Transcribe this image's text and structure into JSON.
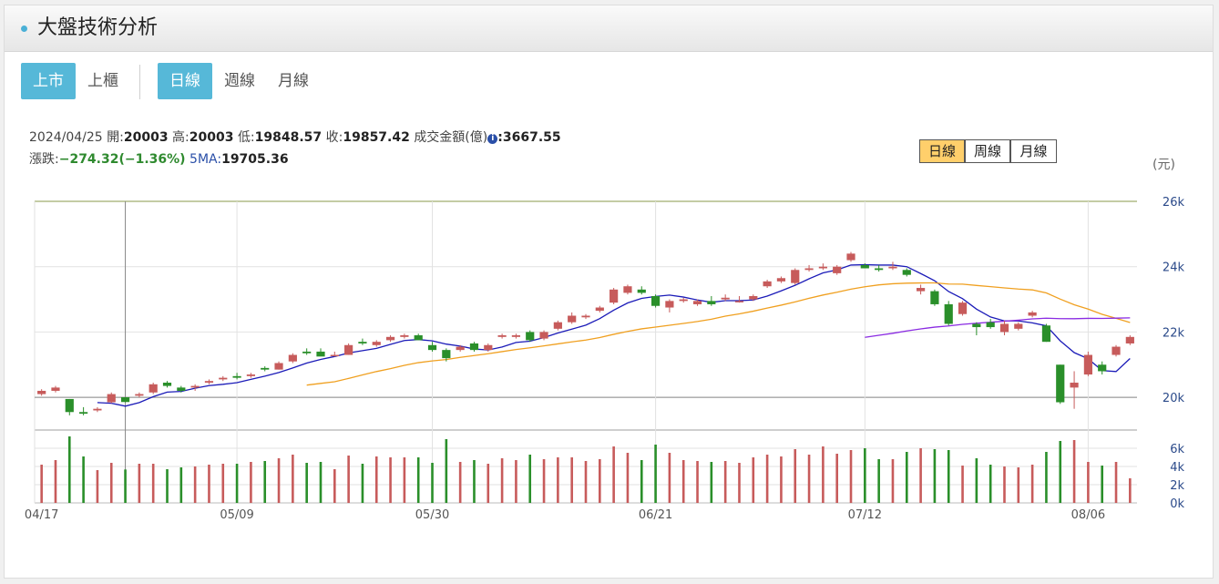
{
  "header": {
    "title": "大盤技術分析"
  },
  "market_tabs": [
    {
      "label": "上市",
      "active": true
    },
    {
      "label": "上櫃",
      "active": false
    }
  ],
  "period_tabs": [
    {
      "label": "日線",
      "active": true
    },
    {
      "label": "週線",
      "active": false
    },
    {
      "label": "月線",
      "active": false
    }
  ],
  "range_buttons": [
    {
      "label": "日線",
      "active": true
    },
    {
      "label": "周線",
      "active": false
    },
    {
      "label": "月線",
      "active": false
    }
  ],
  "info": {
    "date": "2024/04/25",
    "open_label": "開:",
    "open": "20003",
    "high_label": "高:",
    "high": "20003",
    "low_label": "低:",
    "low": "19848.57",
    "close_label": "收:",
    "close": "19857.42",
    "amount_label": "成交金額(億)",
    "amount_icon": "i",
    "amount": ":3667.55",
    "change_label": "漲跌:",
    "change": "−274.32(−1.36%)",
    "ma_label": "5MA:",
    "ma": "19705.36"
  },
  "chart_data": {
    "type": "candlestick",
    "unit": "(元)",
    "price_ylim": [
      19000,
      26000
    ],
    "price_ticks": [
      "26k",
      "24k",
      "22k",
      "20k"
    ],
    "volume_ylim": [
      0,
      8000
    ],
    "volume_ticks": [
      "6k",
      "4k",
      "2k",
      "0k"
    ],
    "x_tick_labels": [
      "04/17",
      "05/09",
      "05/30",
      "06/21",
      "07/12",
      "08/06"
    ],
    "reference_line": 20000,
    "colors": {
      "up": "#c75b5b",
      "down": "#2a8f2a",
      "ma_short": "#1b1bb8",
      "ma_mid": "#f0a020",
      "ma_long": "#8a2be2",
      "grid": "#e2e2e2"
    },
    "candles": [
      {
        "date": "04/17",
        "o": 20100,
        "h": 20250,
        "l": 20050,
        "c": 20200,
        "v": 4200
      },
      {
        "o": 20200,
        "h": 20350,
        "l": 20150,
        "c": 20300,
        "v": 4700
      },
      {
        "o": 19950,
        "h": 19950,
        "l": 19450,
        "c": 19550,
        "v": 7300
      },
      {
        "o": 19550,
        "h": 19700,
        "l": 19450,
        "c": 19500,
        "v": 5100
      },
      {
        "o": 19600,
        "h": 19700,
        "l": 19550,
        "c": 19650,
        "v": 3600
      },
      {
        "o": 19850,
        "h": 20150,
        "l": 19820,
        "c": 20100,
        "v": 4400
      },
      {
        "date": "04/25",
        "o": 20003,
        "h": 20003,
        "l": 19848.57,
        "c": 19857.42,
        "v": 3667.55
      },
      {
        "o": 20050,
        "h": 20150,
        "l": 20000,
        "c": 20100,
        "v": 4300
      },
      {
        "o": 20150,
        "h": 20450,
        "l": 20100,
        "c": 20400,
        "v": 4300
      },
      {
        "o": 20450,
        "h": 20500,
        "l": 20300,
        "c": 20350,
        "v": 3700
      },
      {
        "o": 20300,
        "h": 20350,
        "l": 20150,
        "c": 20200,
        "v": 3900
      },
      {
        "o": 20300,
        "h": 20400,
        "l": 20200,
        "c": 20350,
        "v": 4000
      },
      {
        "o": 20450,
        "h": 20550,
        "l": 20400,
        "c": 20500,
        "v": 4200
      },
      {
        "o": 20550,
        "h": 20650,
        "l": 20500,
        "c": 20600,
        "v": 4300
      },
      {
        "date": "05/09",
        "o": 20650,
        "h": 20750,
        "l": 20550,
        "c": 20600,
        "v": 4300
      },
      {
        "o": 20650,
        "h": 20750,
        "l": 20600,
        "c": 20700,
        "v": 4500
      },
      {
        "o": 20900,
        "h": 20950,
        "l": 20800,
        "c": 20850,
        "v": 4600
      },
      {
        "o": 20850,
        "h": 21100,
        "l": 20850,
        "c": 21050,
        "v": 4900
      },
      {
        "o": 21100,
        "h": 21350,
        "l": 21050,
        "c": 21300,
        "v": 5300
      },
      {
        "o": 21400,
        "h": 21500,
        "l": 21300,
        "c": 21350,
        "v": 4400
      },
      {
        "o": 21400,
        "h": 21500,
        "l": 21300,
        "c": 21250,
        "v": 4500
      },
      {
        "o": 21300,
        "h": 21400,
        "l": 21250,
        "c": 21300,
        "v": 3700
      },
      {
        "o": 21300,
        "h": 21650,
        "l": 21300,
        "c": 21600,
        "v": 5200
      },
      {
        "o": 21700,
        "h": 21800,
        "l": 21600,
        "c": 21650,
        "v": 4300
      },
      {
        "o": 21600,
        "h": 21750,
        "l": 21550,
        "c": 21700,
        "v": 5100
      },
      {
        "o": 21750,
        "h": 21900,
        "l": 21700,
        "c": 21850,
        "v": 5000
      },
      {
        "o": 21850,
        "h": 21950,
        "l": 21800,
        "c": 21900,
        "v": 5000
      },
      {
        "o": 21900,
        "h": 21950,
        "l": 21750,
        "c": 21750,
        "v": 5000
      },
      {
        "date": "05/30",
        "o": 21600,
        "h": 21700,
        "l": 21400,
        "c": 21450,
        "v": 4400
      },
      {
        "o": 21450,
        "h": 21500,
        "l": 21100,
        "c": 21200,
        "v": 7000
      },
      {
        "o": 21450,
        "h": 21600,
        "l": 21400,
        "c": 21550,
        "v": 4500
      },
      {
        "o": 21650,
        "h": 21700,
        "l": 21400,
        "c": 21450,
        "v": 4700
      },
      {
        "o": 21450,
        "h": 21650,
        "l": 21400,
        "c": 21600,
        "v": 4300
      },
      {
        "o": 21850,
        "h": 21950,
        "l": 21800,
        "c": 21900,
        "v": 4900
      },
      {
        "o": 21850,
        "h": 21950,
        "l": 21800,
        "c": 21900,
        "v": 4700
      },
      {
        "o": 22000,
        "h": 22050,
        "l": 21700,
        "c": 21750,
        "v": 5300
      },
      {
        "o": 21800,
        "h": 22050,
        "l": 21750,
        "c": 22000,
        "v": 4800
      },
      {
        "o": 22100,
        "h": 22350,
        "l": 22050,
        "c": 22300,
        "v": 5000
      },
      {
        "o": 22300,
        "h": 22600,
        "l": 22250,
        "c": 22500,
        "v": 5000
      },
      {
        "o": 22450,
        "h": 22550,
        "l": 22400,
        "c": 22500,
        "v": 4600
      },
      {
        "o": 22650,
        "h": 22800,
        "l": 22600,
        "c": 22750,
        "v": 4800
      },
      {
        "o": 22900,
        "h": 23350,
        "l": 22850,
        "c": 23300,
        "v": 6200
      },
      {
        "o": 23200,
        "h": 23450,
        "l": 23150,
        "c": 23400,
        "v": 5500
      },
      {
        "o": 23300,
        "h": 23400,
        "l": 23150,
        "c": 23200,
        "v": 4700
      },
      {
        "date": "06/21",
        "o": 23100,
        "h": 23150,
        "l": 22750,
        "c": 22800,
        "v": 6400
      },
      {
        "o": 22750,
        "h": 23000,
        "l": 22600,
        "c": 22950,
        "v": 5500
      },
      {
        "o": 22950,
        "h": 23050,
        "l": 22900,
        "c": 23000,
        "v": 4700
      },
      {
        "o": 22850,
        "h": 23000,
        "l": 22800,
        "c": 22950,
        "v": 4600
      },
      {
        "o": 22950,
        "h": 23100,
        "l": 22800,
        "c": 22850,
        "v": 4500
      },
      {
        "o": 23000,
        "h": 23150,
        "l": 22950,
        "c": 23050,
        "v": 4600
      },
      {
        "o": 22950,
        "h": 23100,
        "l": 22900,
        "c": 22950,
        "v": 4400
      },
      {
        "o": 23000,
        "h": 23150,
        "l": 22950,
        "c": 23100,
        "v": 5000
      },
      {
        "o": 23400,
        "h": 23600,
        "l": 23350,
        "c": 23550,
        "v": 5300
      },
      {
        "o": 23550,
        "h": 23700,
        "l": 23500,
        "c": 23650,
        "v": 5100
      },
      {
        "o": 23500,
        "h": 23950,
        "l": 23450,
        "c": 23900,
        "v": 5900
      },
      {
        "o": 23900,
        "h": 24050,
        "l": 23850,
        "c": 23950,
        "v": 5300
      },
      {
        "o": 23950,
        "h": 24100,
        "l": 23900,
        "c": 24000,
        "v": 6200
      },
      {
        "o": 23800,
        "h": 24050,
        "l": 23750,
        "c": 24000,
        "v": 5400
      },
      {
        "o": 24200,
        "h": 24450,
        "l": 24150,
        "c": 24400,
        "v": 5800
      },
      {
        "date": "07/12",
        "o": 24050,
        "h": 24100,
        "l": 23950,
        "c": 23950,
        "v": 6000
      },
      {
        "o": 23950,
        "h": 24050,
        "l": 23850,
        "c": 23900,
        "v": 4800
      },
      {
        "o": 23950,
        "h": 24150,
        "l": 23900,
        "c": 24000,
        "v": 4800
      },
      {
        "o": 23900,
        "h": 23950,
        "l": 23700,
        "c": 23750,
        "v": 5600
      },
      {
        "o": 23250,
        "h": 23450,
        "l": 23150,
        "c": 23350,
        "v": 6000
      },
      {
        "o": 23250,
        "h": 23300,
        "l": 22800,
        "c": 22850,
        "v": 5900
      },
      {
        "o": 22850,
        "h": 22950,
        "l": 22200,
        "c": 22250,
        "v": 5800
      },
      {
        "o": 22550,
        "h": 22950,
        "l": 22500,
        "c": 22900,
        "v": 4100
      },
      {
        "o": 22250,
        "h": 22300,
        "l": 21900,
        "c": 22150,
        "v": 4900
      },
      {
        "o": 22300,
        "h": 22400,
        "l": 22100,
        "c": 22150,
        "v": 4200
      },
      {
        "o": 22000,
        "h": 22350,
        "l": 21900,
        "c": 22250,
        "v": 4000
      },
      {
        "o": 22100,
        "h": 22300,
        "l": 22050,
        "c": 22250,
        "v": 3900
      },
      {
        "o": 22500,
        "h": 22650,
        "l": 22450,
        "c": 22600,
        "v": 4200
      },
      {
        "o": 22200,
        "h": 22250,
        "l": 21700,
        "c": 21700,
        "v": 5600
      },
      {
        "o": 21000,
        "h": 21000,
        "l": 19800,
        "c": 19850,
        "v": 6800
      },
      {
        "o": 20300,
        "h": 20800,
        "l": 19650,
        "c": 20450,
        "v": 6900
      },
      {
        "date": "08/06",
        "o": 20700,
        "h": 21400,
        "l": 20650,
        "c": 21300,
        "v": 4500
      },
      {
        "o": 21000,
        "h": 21100,
        "l": 20700,
        "c": 20800,
        "v": 4100
      },
      {
        "o": 21300,
        "h": 21600,
        "l": 21250,
        "c": 21550,
        "v": 4500
      },
      {
        "o": 21650,
        "h": 21900,
        "l": 21600,
        "c": 21850,
        "v": 2700
      }
    ]
  }
}
